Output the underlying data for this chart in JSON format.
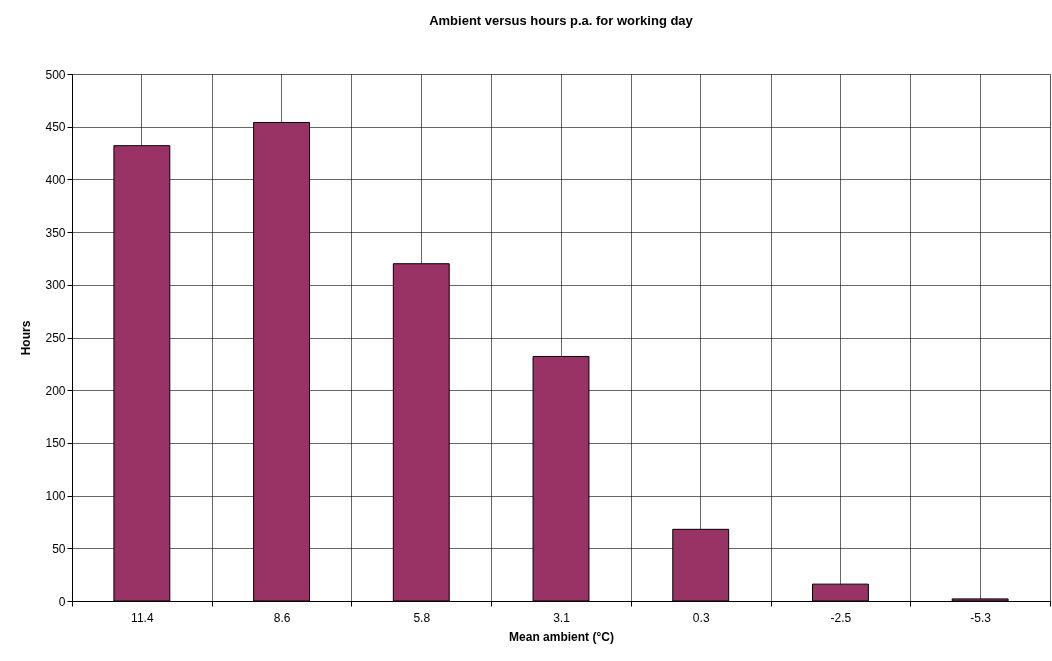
{
  "chart_data": {
    "type": "bar",
    "title": "Ambient versus hours p.a. for working day",
    "xlabel": "Mean ambient (°C)",
    "ylabel": "Hours",
    "categories": [
      "11.4",
      "8.6",
      "5.8",
      "3.1",
      "0.3",
      "-2.5",
      "-5.3"
    ],
    "values": [
      432,
      454,
      320,
      232,
      68,
      16,
      2
    ],
    "color": "#993366",
    "ylim": [
      0,
      500
    ],
    "yticks": [
      0,
      50,
      100,
      150,
      200,
      250,
      300,
      350,
      400,
      450,
      500
    ],
    "grid": true
  }
}
